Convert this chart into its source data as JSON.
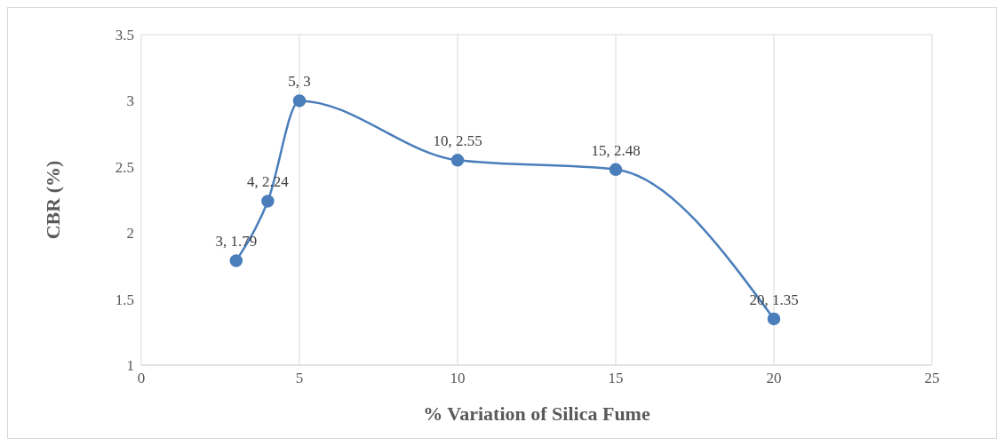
{
  "chart_data": {
    "type": "line",
    "xlabel": "% Variation of Silica Fume",
    "ylabel": "CBR (%)",
    "x": [
      3,
      4,
      5,
      10,
      15,
      20
    ],
    "series": [
      {
        "color": "#4a7ebb",
        "values": [
          1.79,
          2.24,
          3,
          2.55,
          2.48,
          1.35
        ],
        "value_labels": [
          "3, 1.79",
          "4, 2.24",
          "5, 3",
          "10, 2.55",
          "15, 2.48",
          "20, 1.35"
        ]
      }
    ],
    "xlim": [
      0,
      25
    ],
    "xticks": [
      0,
      5,
      10,
      15,
      20,
      25
    ],
    "ylim": [
      1,
      3.5
    ],
    "yticks": [
      1,
      1.5,
      2,
      2.5,
      3,
      3.5
    ],
    "grid": true,
    "marker": "circle",
    "line_style": "solid",
    "legend": false
  }
}
